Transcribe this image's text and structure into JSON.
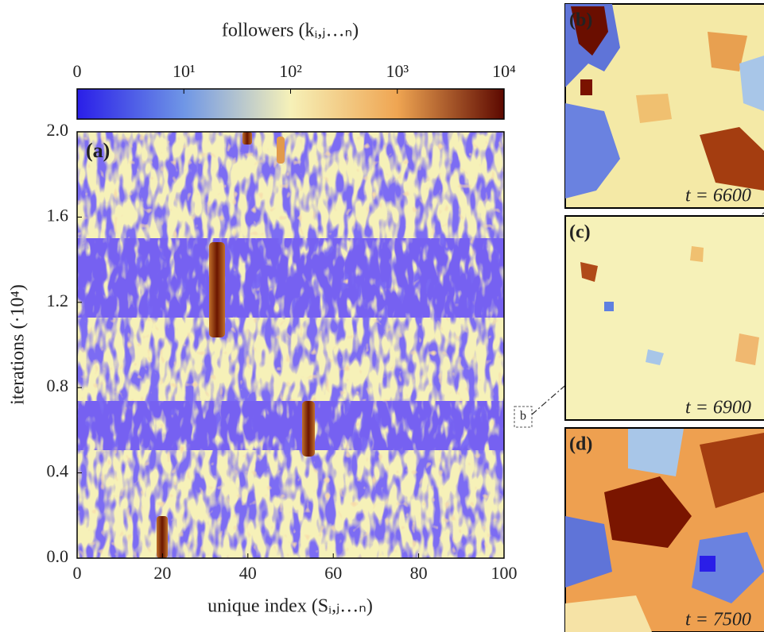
{
  "chart_data": {
    "type": "heatmap",
    "colorbar_label": "followers (kᵢ,ⱼ…ₙ)",
    "clim": [
      0,
      4
    ],
    "cticks": [
      {
        "value": 0,
        "label": "0"
      },
      {
        "value": 1,
        "label": "10¹"
      },
      {
        "value": 2,
        "label": "10²"
      },
      {
        "value": 3,
        "label": "10³"
      },
      {
        "value": 4,
        "label": "10⁴"
      }
    ],
    "colors": [
      "#2a1ee8",
      "#6f96e6",
      "#f6f1b8",
      "#efa552",
      "#5c0800"
    ],
    "xlabel": "unique index (Sᵢ,ⱼ…ₙ)",
    "ylabel": "iterations (·10⁴)",
    "xlim": [
      0,
      100
    ],
    "xticks": [
      0,
      20,
      40,
      60,
      80,
      100
    ],
    "ylim": [
      0,
      2
    ],
    "yticks": [
      {
        "value": 0,
        "label": "0.0"
      },
      0.4,
      0.8,
      1.2,
      1.6,
      {
        "value": 2,
        "label": "2.0"
      }
    ],
    "panel_label": "(a)",
    "inset_marker": "b",
    "panels": [
      {
        "label": "(b)",
        "annotation": "t = 6600"
      },
      {
        "label": "(c)",
        "annotation": "t = 6900"
      },
      {
        "label": "(d)",
        "annotation": "t = 7500"
      }
    ]
  }
}
